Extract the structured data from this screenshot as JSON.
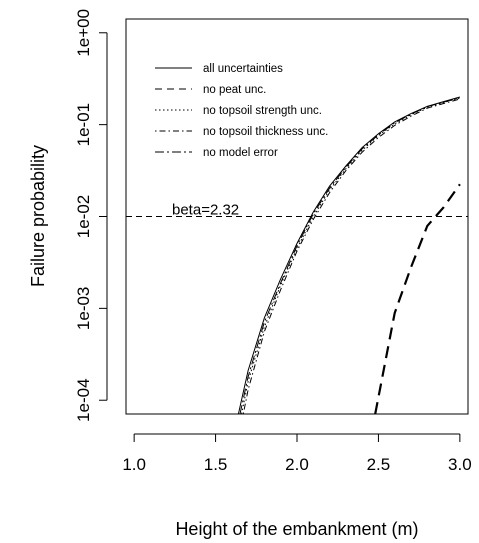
{
  "chart_data": {
    "type": "line",
    "title": "",
    "xlabel": "Height of the embankment (m)",
    "ylabel": "Failure probability",
    "xlim": [
      0.95,
      3.05
    ],
    "ylim": [
      -4.15,
      0.15
    ],
    "yscale": "log10",
    "x_ticks": [
      {
        "value": 1.0,
        "label": "1.0"
      },
      {
        "value": 1.5,
        "label": "1.5"
      },
      {
        "value": 2.0,
        "label": "2.0"
      },
      {
        "value": 2.5,
        "label": "2.5"
      },
      {
        "value": 3.0,
        "label": "3.0"
      }
    ],
    "y_ticks": [
      {
        "value": 0.0001,
        "label": "1e-04"
      },
      {
        "value": 0.001,
        "label": "1e-03"
      },
      {
        "value": 0.01,
        "label": "1e-02"
      },
      {
        "value": 0.1,
        "label": "1e-01"
      },
      {
        "value": 1.0,
        "label": "1e+00"
      }
    ],
    "grid": false,
    "legend_position": "top-left",
    "reference_line": {
      "y": 0.01,
      "label": "beta=2.32",
      "style": "dashed"
    },
    "series": [
      {
        "name": "all uncertainties",
        "style": "solid",
        "x": [
          1.64,
          1.7,
          1.8,
          1.9,
          2.0,
          2.1,
          2.2,
          2.3,
          2.4,
          2.5,
          2.6,
          2.7,
          2.8,
          2.9,
          3.0
        ],
        "y": [
          7.08e-05,
          0.00021,
          0.00079,
          0.0021,
          0.0051,
          0.0112,
          0.0214,
          0.0355,
          0.0562,
          0.0794,
          0.107,
          0.132,
          0.158,
          0.178,
          0.2
        ]
      },
      {
        "name": "no peat unc.",
        "style": "dashed",
        "x": [
          2.48,
          2.6,
          2.7,
          2.8,
          2.9,
          3.0
        ],
        "y": [
          7.08e-05,
          0.00089,
          0.0028,
          0.0079,
          0.0126,
          0.0224
        ]
      },
      {
        "name": "no topsoil strength unc.",
        "style": "dotted",
        "x": [
          1.66,
          1.7,
          1.8,
          1.9,
          2.0,
          2.1,
          2.2,
          2.3,
          2.4,
          2.5,
          2.6,
          2.7,
          2.8,
          2.9,
          3.0
        ],
        "y": [
          7.08e-05,
          0.00016,
          0.00063,
          0.0018,
          0.0045,
          0.01,
          0.0195,
          0.0331,
          0.0525,
          0.0759,
          0.102,
          0.128,
          0.155,
          0.174,
          0.195
        ]
      },
      {
        "name": "no topsoil thickness unc.",
        "style": "dotdash",
        "x": [
          1.67,
          1.7,
          1.8,
          1.9,
          2.0,
          2.1,
          2.2,
          2.3,
          2.4,
          2.5,
          2.6,
          2.7,
          2.8,
          2.9,
          3.0
        ],
        "y": [
          7.08e-05,
          0.00013,
          0.00056,
          0.0016,
          0.0042,
          0.0093,
          0.0182,
          0.0316,
          0.0501,
          0.0724,
          0.098,
          0.124,
          0.151,
          0.17,
          0.19
        ]
      },
      {
        "name": "no model error",
        "style": "longdash-dot",
        "x": [
          1.65,
          1.7,
          1.8,
          1.9,
          2.0,
          2.1,
          2.2,
          2.3,
          2.4,
          2.5,
          2.6,
          2.7,
          2.8,
          2.9,
          3.0
        ],
        "y": [
          7.08e-05,
          0.00018,
          0.00071,
          0.0019,
          0.0048,
          0.0107,
          0.0204,
          0.0343,
          0.0545,
          0.0776,
          0.105,
          0.13,
          0.157,
          0.176,
          0.198
        ]
      }
    ]
  }
}
